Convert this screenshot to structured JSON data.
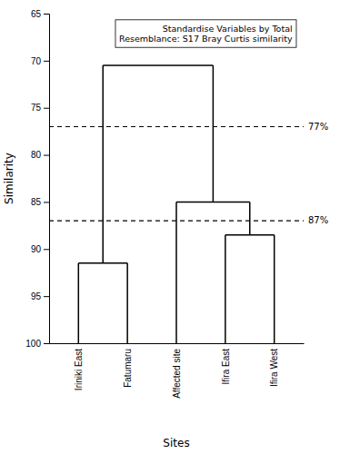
{
  "chart_data": {
    "type": "dendrogram",
    "categories": [
      "Iriniki East",
      "Fatumaru",
      "Affected site",
      "Ifira East",
      "Ifira West"
    ],
    "clusters": [
      {
        "leaves": [
          "Iriniki East",
          "Fatumaru"
        ],
        "value": 91.5
      },
      {
        "leaves": [
          "Ifira East",
          "Ifira West"
        ],
        "value": 88.5
      },
      {
        "leaves": [
          "Affected site",
          "Ifira East",
          "Ifira West"
        ],
        "value": 85.0
      },
      {
        "leaves": [
          "Iriniki East",
          "Fatumaru",
          "Affected site",
          "Ifira East",
          "Ifira West"
        ],
        "value": 70.5
      }
    ],
    "reference_lines": [
      {
        "value": 77,
        "label": "77%",
        "line_style": "dashed"
      },
      {
        "value": 87,
        "label": "87%",
        "line_style": "dashed"
      }
    ],
    "annotation": "Standardise Variables by Total\nResemblance: S17 Bray Curtis similarity",
    "ylabel": "Similarity",
    "xlabel": "Sites",
    "ylim": [
      100,
      65
    ],
    "yticks": [
      65,
      70,
      75,
      80,
      85,
      90,
      95,
      100
    ],
    "color": "#000000",
    "grid": false
  }
}
